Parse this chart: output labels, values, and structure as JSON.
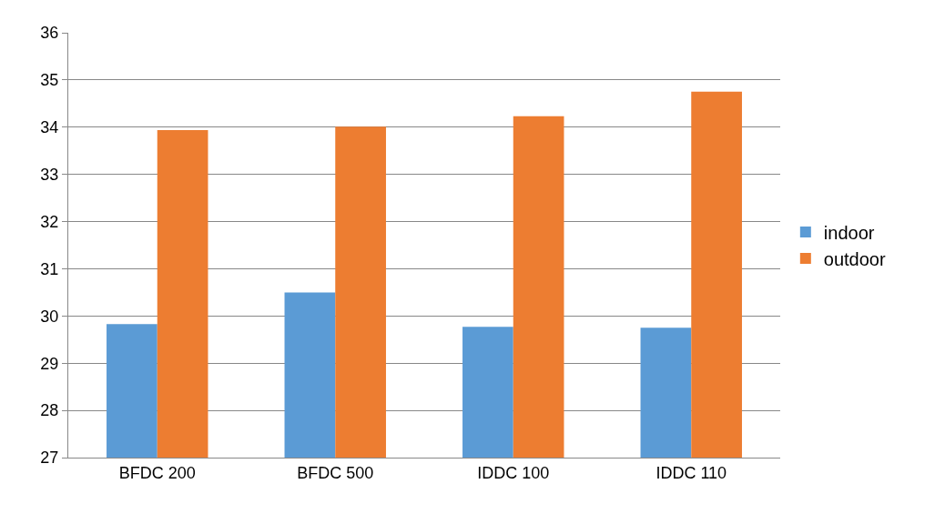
{
  "chart_data": {
    "type": "bar",
    "categories": [
      "BFDC 200",
      "BFDC 500",
      "IDDC 100",
      "IDDC 110"
    ],
    "series": [
      {
        "name": "indoor",
        "color": "#5b9bd5",
        "values": [
          29.83,
          30.5,
          29.77,
          29.75
        ]
      },
      {
        "name": "outdoor",
        "color": "#ed7d31",
        "values": [
          33.94,
          34.01,
          34.23,
          34.75
        ]
      }
    ],
    "ylim": [
      27,
      36
    ],
    "yticks": [
      27,
      28,
      29,
      30,
      31,
      32,
      33,
      34,
      35,
      36
    ],
    "grid": "y",
    "legend": "right"
  }
}
